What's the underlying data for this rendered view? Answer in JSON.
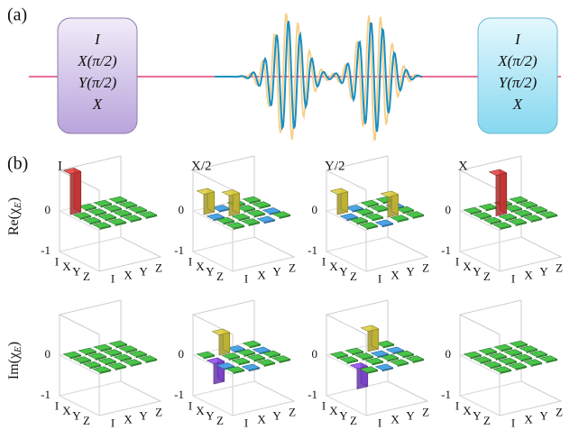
{
  "panel_labels": [
    "(a)",
    "(b)"
  ],
  "pulse_boxes": {
    "left": [
      "I",
      "X(π/2)",
      "Y(π/2)",
      "X"
    ],
    "right": [
      "I",
      "X(π/2)",
      "Y(π/2)",
      "X"
    ]
  },
  "row_labels": [
    {
      "prefix": "Re(χ",
      "sub": "E",
      "suffix": ")"
    },
    {
      "prefix": "Im(χ",
      "sub": "E",
      "suffix": ")"
    }
  ],
  "chart_data": [
    {
      "type": "bar3d",
      "title": "I",
      "rows": [
        "I",
        "X",
        "Y",
        "Z"
      ],
      "cols": [
        "I",
        "X",
        "Y",
        "Z"
      ],
      "zlim": [
        -1,
        1
      ],
      "zticks": [
        -1,
        0
      ],
      "values": [
        [
          1,
          0,
          0,
          0
        ],
        [
          0,
          0,
          0,
          0
        ],
        [
          0,
          0,
          0,
          0
        ],
        [
          0,
          0,
          0,
          0
        ]
      ]
    },
    {
      "type": "bar3d",
      "title": "X/2",
      "rows": [
        "I",
        "X",
        "Y",
        "Z"
      ],
      "cols": [
        "I",
        "X",
        "Y",
        "Z"
      ],
      "zlim": [
        -1,
        1
      ],
      "zticks": [
        -1,
        0
      ],
      "values": [
        [
          0.5,
          -0.03,
          0,
          0
        ],
        [
          -0.03,
          0.5,
          0,
          0
        ],
        [
          0,
          0,
          0,
          -0.03
        ],
        [
          0,
          0,
          -0.03,
          0
        ]
      ]
    },
    {
      "type": "bar3d",
      "title": "Y/2",
      "rows": [
        "I",
        "X",
        "Y",
        "Z"
      ],
      "cols": [
        "I",
        "X",
        "Y",
        "Z"
      ],
      "zlim": [
        -1,
        1
      ],
      "zticks": [
        -1,
        0
      ],
      "values": [
        [
          0.5,
          -0.03,
          0,
          0
        ],
        [
          -0.03,
          0,
          0,
          -0.03
        ],
        [
          0,
          0,
          0.5,
          0
        ],
        [
          0,
          -0.03,
          0,
          0
        ]
      ]
    },
    {
      "type": "bar3d",
      "title": "X",
      "rows": [
        "I",
        "X",
        "Y",
        "Z"
      ],
      "cols": [
        "I",
        "X",
        "Y",
        "Z"
      ],
      "zlim": [
        -1,
        1
      ],
      "zticks": [
        -1,
        0
      ],
      "values": [
        [
          0,
          0,
          0,
          0
        ],
        [
          0,
          1,
          0,
          0
        ],
        [
          0,
          0,
          0,
          0
        ],
        [
          0,
          0,
          0,
          0
        ]
      ]
    },
    {
      "type": "bar3d",
      "rows": [
        "I",
        "X",
        "Y",
        "Z"
      ],
      "cols": [
        "I",
        "X",
        "Y",
        "Z"
      ],
      "zlim": [
        -1,
        1
      ],
      "zticks": [
        -1,
        0
      ],
      "values": [
        [
          0,
          0,
          0,
          0
        ],
        [
          0,
          0,
          0,
          0
        ],
        [
          0,
          0,
          0,
          0
        ],
        [
          0,
          0,
          0,
          0
        ]
      ]
    },
    {
      "type": "bar3d",
      "rows": [
        "I",
        "X",
        "Y",
        "Z"
      ],
      "cols": [
        "I",
        "X",
        "Y",
        "Z"
      ],
      "zlim": [
        -1,
        1
      ],
      "zticks": [
        -1,
        0
      ],
      "values": [
        [
          0,
          0.5,
          -0.03,
          0
        ],
        [
          -0.5,
          0,
          0,
          -0.03
        ],
        [
          -0.03,
          0,
          0,
          0
        ],
        [
          0,
          -0.03,
          0,
          0
        ]
      ]
    },
    {
      "type": "bar3d",
      "rows": [
        "I",
        "X",
        "Y",
        "Z"
      ],
      "cols": [
        "I",
        "X",
        "Y",
        "Z"
      ],
      "zlim": [
        -1,
        1
      ],
      "zticks": [
        -1,
        0
      ],
      "values": [
        [
          0,
          0,
          0.5,
          0
        ],
        [
          0,
          0,
          -0.03,
          -0.03
        ],
        [
          -0.5,
          0,
          0,
          0
        ],
        [
          0,
          -0.03,
          0,
          0
        ]
      ]
    },
    {
      "type": "bar3d",
      "rows": [
        "I",
        "X",
        "Y",
        "Z"
      ],
      "cols": [
        "I",
        "X",
        "Y",
        "Z"
      ],
      "zlim": [
        -1,
        1
      ],
      "zticks": [
        -1,
        0
      ],
      "values": [
        [
          0,
          0,
          0,
          0
        ],
        [
          0,
          0,
          0,
          0
        ],
        [
          0,
          0,
          0,
          0
        ],
        [
          0,
          0,
          0,
          0
        ]
      ]
    }
  ]
}
